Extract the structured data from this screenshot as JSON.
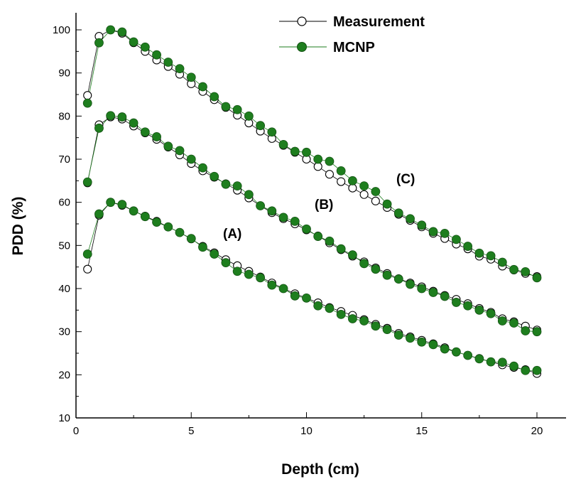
{
  "chart_data": {
    "type": "scatter",
    "xlabel": "Depth (cm)",
    "ylabel": "PDD (%)",
    "xlim": [
      0,
      22
    ],
    "ylim": [
      10,
      105
    ],
    "xticks": [
      0,
      5,
      10,
      15,
      20
    ],
    "yticks": [
      10,
      20,
      30,
      40,
      50,
      60,
      70,
      80,
      90,
      100
    ],
    "grid": false,
    "legend": "top-right",
    "colors": {
      "measurement": "#000000",
      "mcnp": "#1e7e1e",
      "mcnp_edge": "#145214"
    },
    "series": [
      {
        "name": "Measurement",
        "marker": "open-circle"
      },
      {
        "name": "MCNP",
        "marker": "filled-circle"
      }
    ],
    "groups": [
      {
        "label": "(A)",
        "x": [
          0.5,
          1,
          1.5,
          2,
          2.5,
          3,
          3.5,
          4,
          4.5,
          5,
          5.5,
          6,
          6.5,
          7,
          7.5,
          8,
          8.5,
          9,
          9.5,
          10,
          10.5,
          11,
          11.5,
          12,
          12.5,
          13,
          13.5,
          14,
          14.5,
          15,
          15.5,
          16,
          16.5,
          17,
          17.5,
          18,
          18.5,
          19,
          19.5,
          20
        ],
        "measurement": [
          44.5,
          57,
          60,
          59.3,
          58,
          56.8,
          55.6,
          54.3,
          53,
          51.5,
          49.8,
          48.3,
          46.7,
          45.3,
          44,
          42.7,
          41.3,
          40,
          38.8,
          37.8,
          36.7,
          35.6,
          34.7,
          33.8,
          32.8,
          31.7,
          30.8,
          29.6,
          28.8,
          28,
          27.2,
          26.3,
          25.3,
          24.5,
          23.8,
          23,
          22.3,
          21.7,
          21.2,
          20.3
        ],
        "mcnp": [
          48,
          57.3,
          60,
          59.5,
          58,
          56.7,
          55.4,
          54.3,
          53,
          51.6,
          49.6,
          48,
          46,
          44,
          43.3,
          42.5,
          40.8,
          40,
          38.3,
          37.8,
          36,
          35.4,
          34,
          33,
          32.5,
          31.3,
          30.5,
          29.2,
          28.5,
          27.6,
          27,
          26,
          25.3,
          24.5,
          23.7,
          23,
          22.9,
          22,
          21,
          21
        ]
      },
      {
        "label": "(B)",
        "x": [
          0.5,
          1,
          1.5,
          2,
          2.5,
          3,
          3.5,
          4,
          4.5,
          5,
          5.5,
          6,
          6.5,
          7,
          7.5,
          8,
          8.5,
          9,
          9.5,
          10,
          10.5,
          11,
          11.5,
          12,
          12.5,
          13,
          13.5,
          14,
          14.5,
          15,
          15.5,
          16,
          16.5,
          17,
          17.5,
          18,
          18.5,
          19,
          19.5,
          20
        ],
        "measurement": [
          64.5,
          78,
          79.8,
          79.3,
          77.7,
          76.1,
          74.6,
          72.8,
          71,
          69,
          67.3,
          65.8,
          64.3,
          62.8,
          61,
          59.2,
          57.6,
          56.2,
          55,
          53.6,
          52.2,
          50.6,
          49,
          47.5,
          46.2,
          44.8,
          43.5,
          42.3,
          41.3,
          40.4,
          39.4,
          38.4,
          37.5,
          36.5,
          35.4,
          34.5,
          33,
          32.3,
          31.3,
          30.4
        ],
        "mcnp": [
          64.7,
          77.2,
          80.1,
          79.8,
          78.4,
          76.3,
          75.2,
          73,
          72,
          70,
          68,
          66,
          64.2,
          63.8,
          61.8,
          59.2,
          58,
          56.5,
          55.6,
          53.8,
          52.1,
          51,
          49.2,
          47.8,
          45.8,
          44.5,
          43.1,
          42.2,
          41,
          40,
          39.1,
          38.2,
          36.8,
          36,
          35,
          34.2,
          32.5,
          32,
          30.2,
          30
        ]
      },
      {
        "label": "(C)",
        "x": [
          0.5,
          1,
          1.5,
          2,
          2.5,
          3,
          3.5,
          4,
          4.5,
          5,
          5.5,
          6,
          6.5,
          7,
          7.5,
          8,
          8.5,
          9,
          9.5,
          10,
          10.5,
          11,
          11.5,
          12,
          12.5,
          13,
          13.5,
          14,
          14.5,
          15,
          15.5,
          16,
          16.5,
          17,
          17.5,
          18,
          18.5,
          19,
          19.5,
          20
        ],
        "measurement": [
          84.8,
          98.5,
          100,
          99.2,
          97,
          95,
          93,
          91.5,
          89.7,
          87.5,
          85.7,
          83.8,
          82,
          80.2,
          78.4,
          76.5,
          74.8,
          73.2,
          71.6,
          70,
          68.3,
          66.5,
          64.8,
          63.3,
          61.8,
          60.3,
          58.8,
          57.2,
          55.8,
          54.3,
          52.8,
          51.6,
          50.3,
          49.2,
          47.5,
          46.8,
          45.2,
          44.3,
          43.5,
          42.8
        ],
        "mcnp": [
          83,
          97,
          100,
          99.5,
          97.2,
          96,
          94.2,
          92.5,
          91,
          89,
          86.8,
          84.5,
          82.2,
          81.5,
          80,
          77.8,
          76.3,
          73.4,
          71.8,
          71.6,
          70,
          69.5,
          67.3,
          65,
          63.8,
          62.5,
          59.6,
          57.5,
          56.2,
          54.7,
          53.2,
          52.8,
          51.4,
          49.8,
          48.2,
          47.6,
          46.1,
          44.4,
          43.9,
          42.5
        ]
      }
    ]
  }
}
